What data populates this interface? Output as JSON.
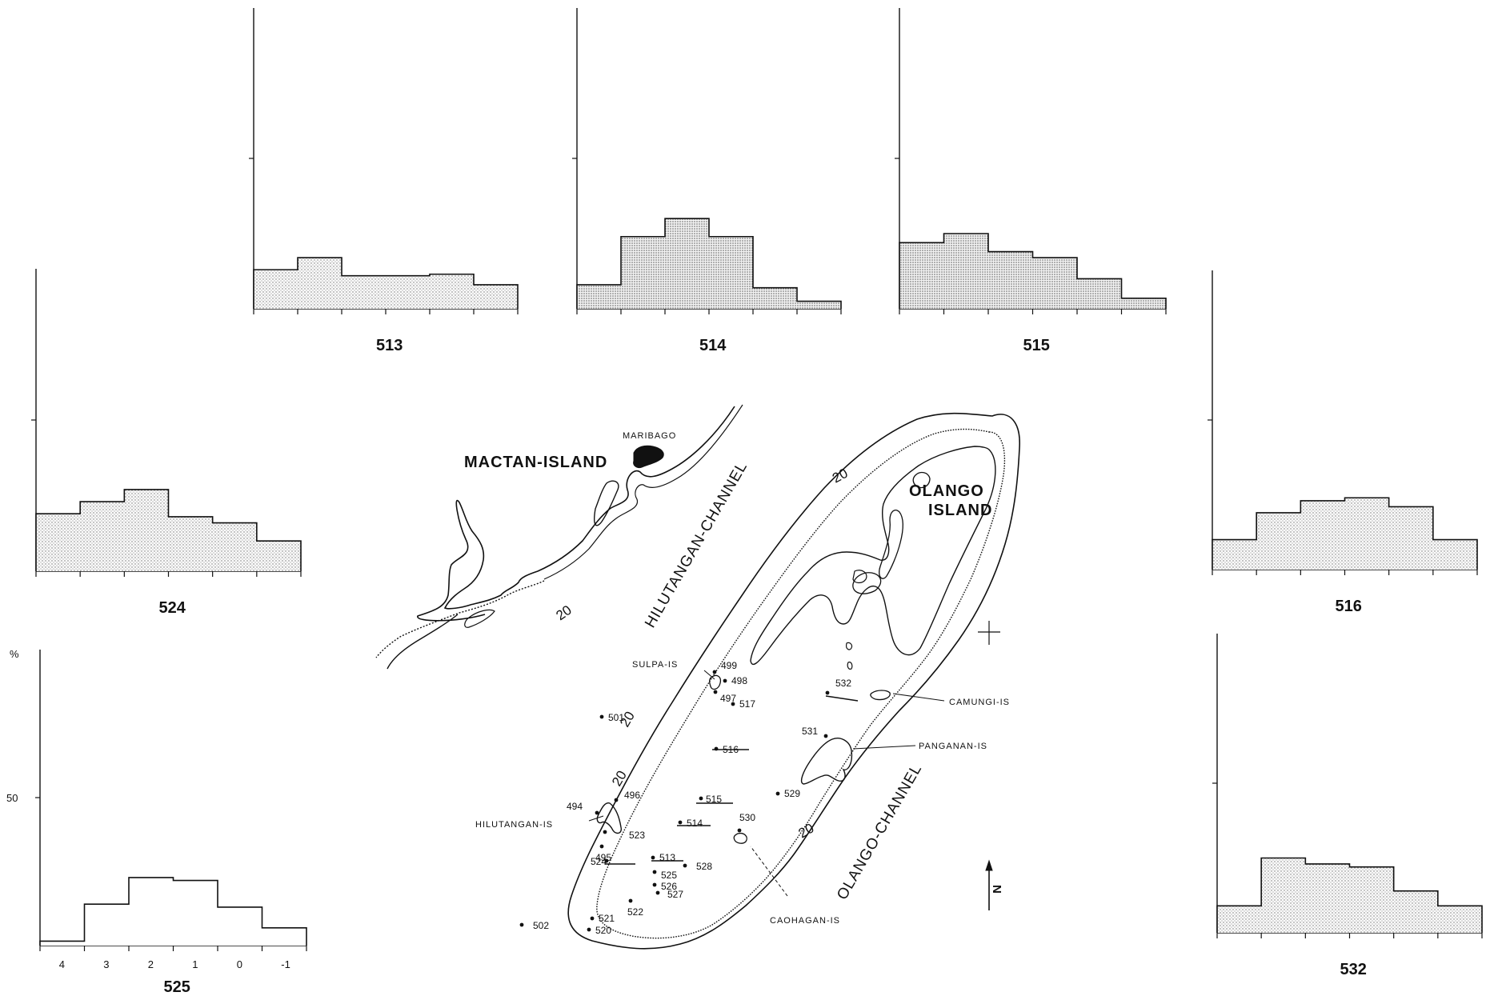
{
  "figure": {
    "y_axis_unit": "%",
    "y_tick_label": "50",
    "x_tick_labels": [
      "4",
      "3",
      "2",
      "1",
      "0",
      "-1"
    ]
  },
  "chart_data": [
    {
      "type": "bar",
      "title": "513",
      "categories": [
        "4",
        "3",
        "2",
        "1",
        "0",
        "-1"
      ],
      "values": [
        13,
        17,
        11,
        11,
        11.5,
        8
      ],
      "ylim": [
        0,
        100
      ],
      "ylabel": "%"
    },
    {
      "type": "bar",
      "title": "514",
      "categories": [
        "4",
        "3",
        "2",
        "1",
        "0",
        "-1"
      ],
      "values": [
        8,
        24,
        30,
        24,
        7,
        2.5
      ],
      "ylim": [
        0,
        100
      ],
      "ylabel": "%"
    },
    {
      "type": "bar",
      "title": "515",
      "categories": [
        "4",
        "3",
        "2",
        "1",
        "0",
        "-1"
      ],
      "values": [
        22,
        25,
        19,
        17,
        10,
        3.5
      ],
      "ylim": [
        0,
        100
      ],
      "ylabel": "%"
    },
    {
      "type": "bar",
      "title": "524",
      "categories": [
        "4",
        "3",
        "2",
        "1",
        "0",
        "-1"
      ],
      "values": [
        19,
        23,
        27,
        18,
        16,
        10
      ],
      "ylim": [
        0,
        100
      ],
      "ylabel": "%"
    },
    {
      "type": "bar",
      "title": "516",
      "categories": [
        "4",
        "3",
        "2",
        "1",
        "0",
        "-1"
      ],
      "values": [
        10,
        19,
        23,
        24,
        21,
        10
      ],
      "ylim": [
        0,
        100
      ],
      "ylabel": "%"
    },
    {
      "type": "bar",
      "title": "525",
      "categories": [
        "4",
        "3",
        "2",
        "1",
        "0",
        "-1"
      ],
      "values": [
        1.5,
        14,
        23,
        22,
        13,
        6
      ],
      "ylim": [
        0,
        100
      ],
      "ylabel": "%"
    },
    {
      "type": "bar",
      "title": "532",
      "categories": [
        "4",
        "3",
        "2",
        "1",
        "0",
        "-1"
      ],
      "values": [
        9,
        25,
        23,
        22,
        14,
        9
      ],
      "ylim": [
        0,
        100
      ],
      "ylabel": "%"
    }
  ],
  "map": {
    "islands": {
      "mactan": "MACTAN-ISLAND",
      "maribago": "MARIBAGO",
      "olango_1": "OLANGO",
      "olango_2": "ISLAND"
    },
    "channels": {
      "hilutangan": "HILUTANGAN-CHANNEL",
      "olango": "OLANGO-CHANNEL"
    },
    "features": {
      "sulpa": "SULPA-IS",
      "camungi": "CAMUNGI-IS",
      "panganan": "PANGANAN-IS",
      "hilutangan_is": "HILUTANGAN-IS",
      "caohagan": "CAOHAGAN-IS"
    },
    "contour_label": "20",
    "north_label": "N",
    "stations": [
      "499",
      "498",
      "497",
      "517",
      "501",
      "532",
      "516",
      "531",
      "515",
      "529",
      "496",
      "494",
      "514",
      "530",
      "523",
      "495",
      "513",
      "524",
      "525",
      "528",
      "526",
      "527",
      "522",
      "521",
      "520",
      "502"
    ]
  }
}
